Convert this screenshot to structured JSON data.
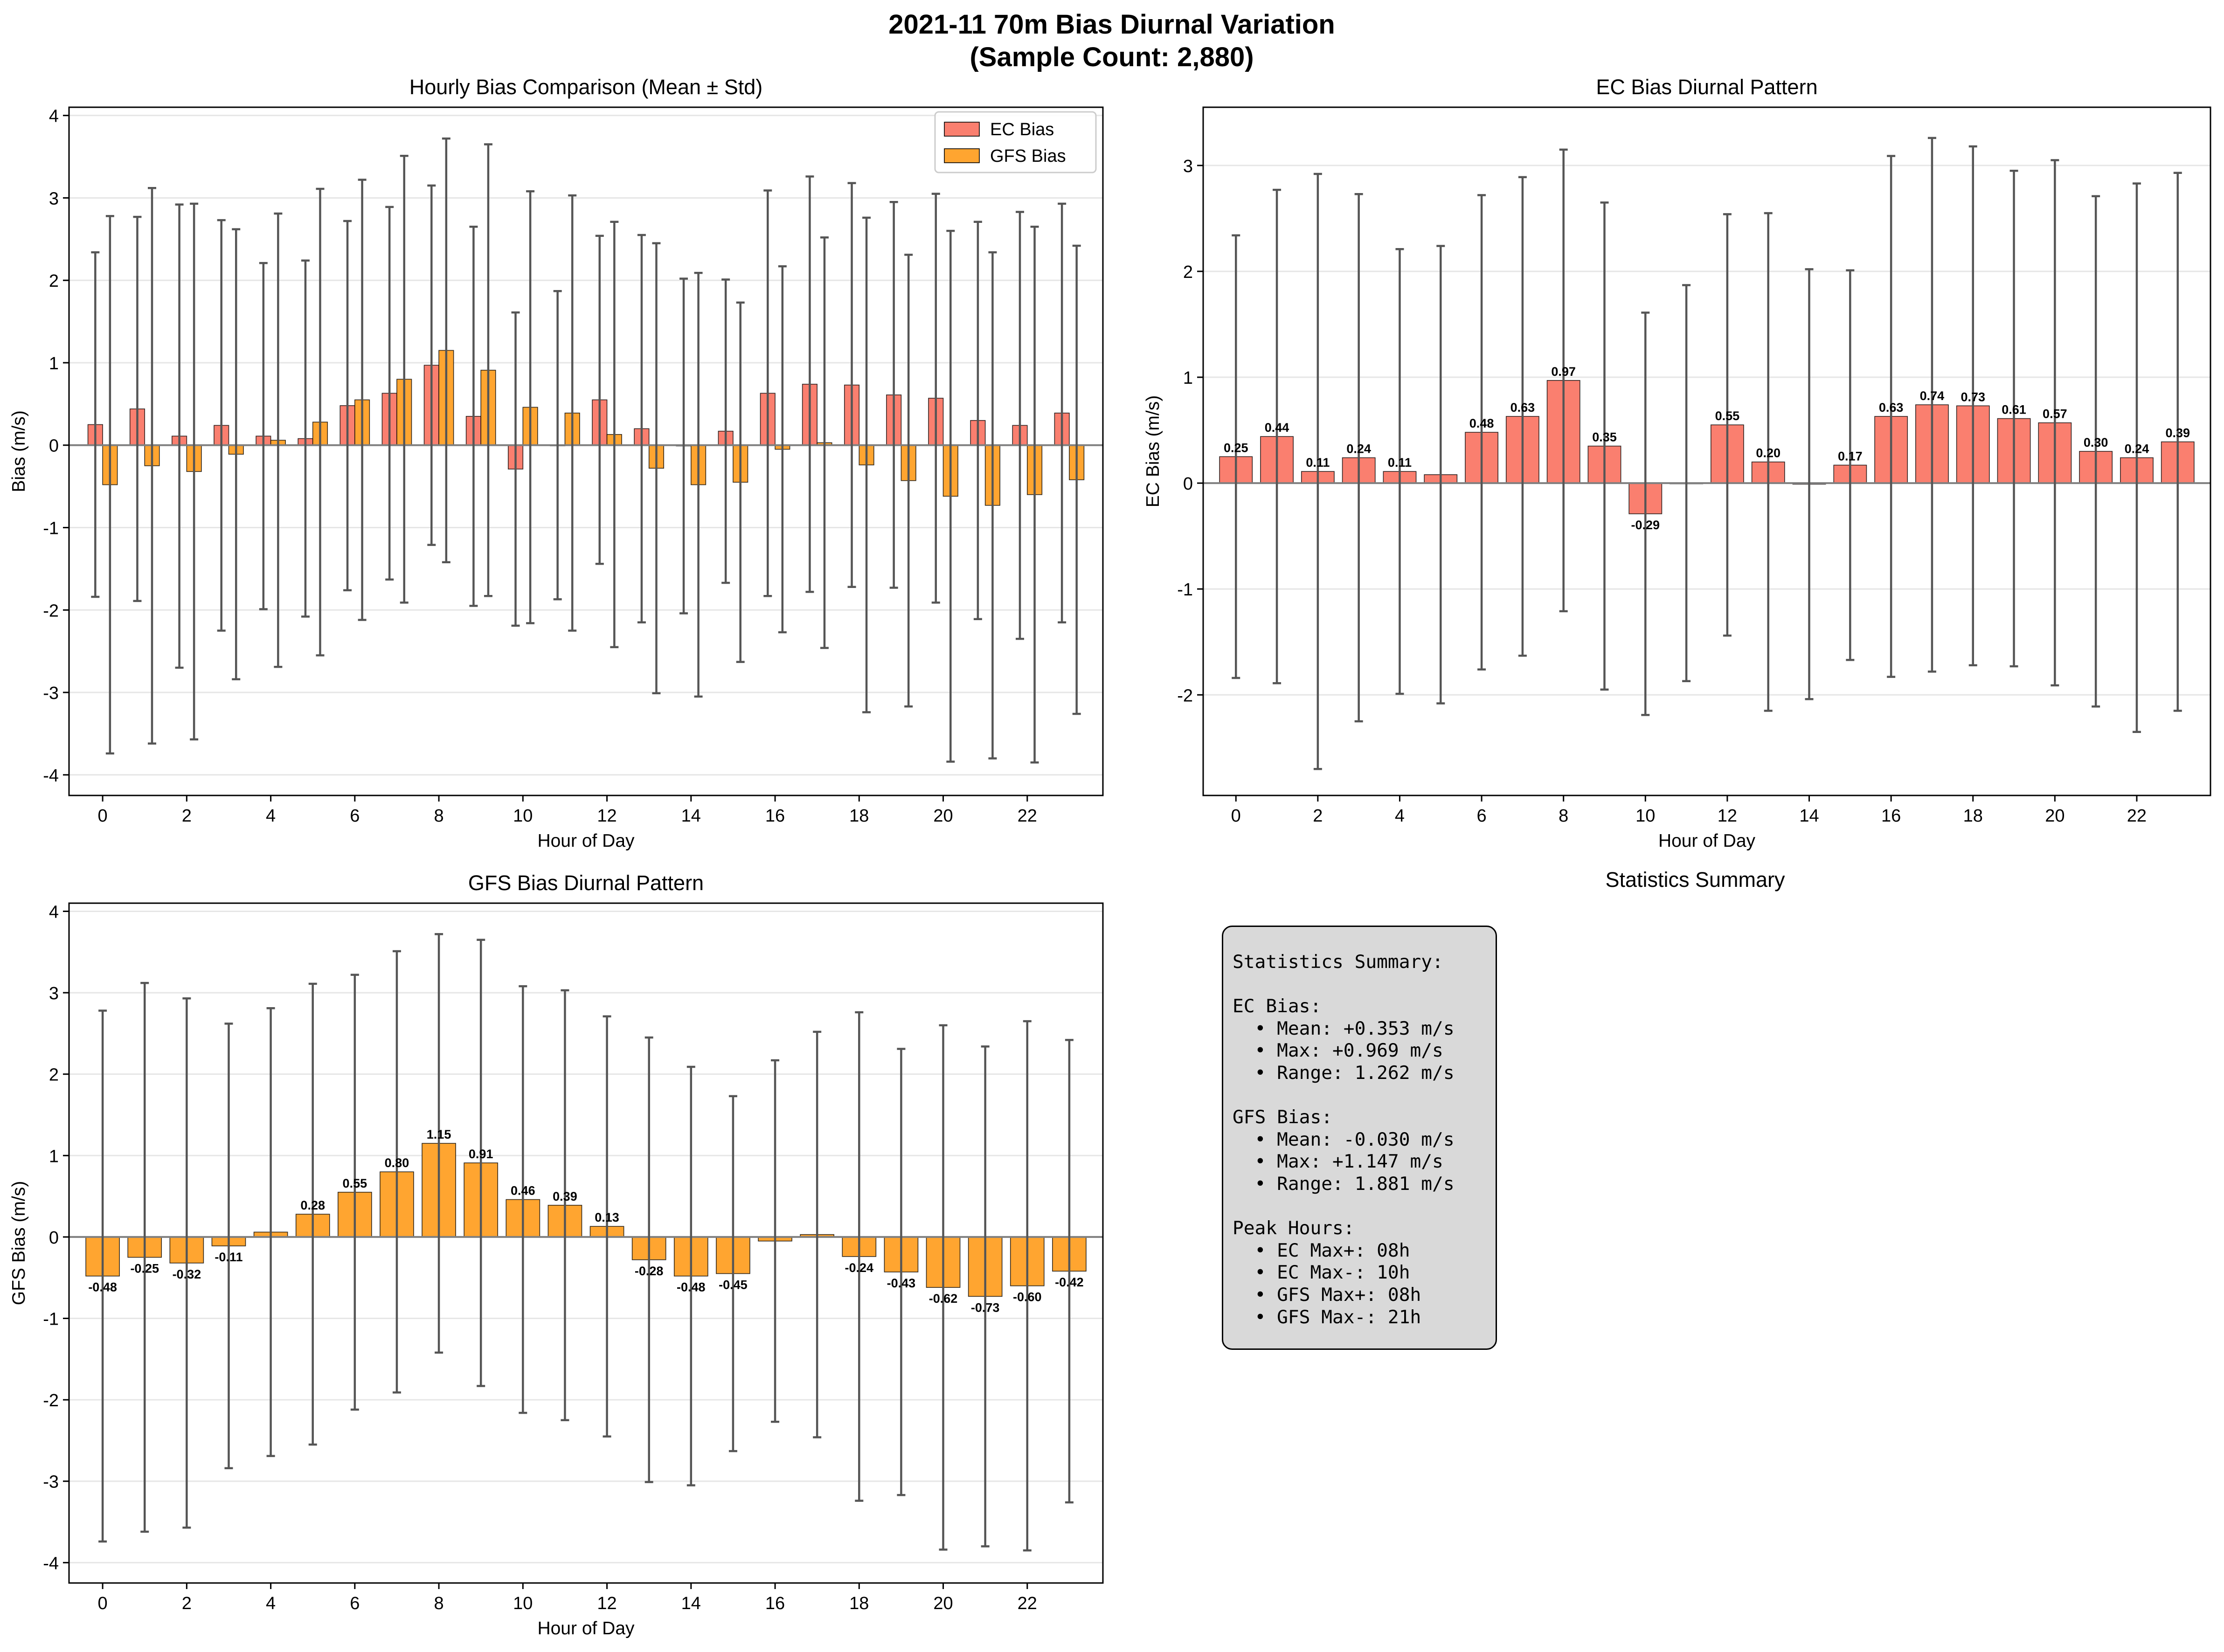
{
  "figure": {
    "title_line1": "2021-11 70m Bias Diurnal Variation",
    "title_line2": "(Sample Count: 2,880)"
  },
  "colors": {
    "ec": "#fa7f6f",
    "gfs": "#ffa530",
    "errorbar": "#555555",
    "zero_line": "#808080",
    "grid": "#e6e6e6"
  },
  "chart_data": [
    {
      "id": "comparison",
      "type": "bar",
      "title": "Hourly Bias Comparison (Mean ± Std)",
      "xlabel": "Hour of Day",
      "ylabel": "Bias (m/s)",
      "ylim": [
        -4.25,
        4.1
      ],
      "yticks": [
        -4,
        -3,
        -2,
        -1,
        0,
        1,
        2,
        3,
        4
      ],
      "xticks": [
        0,
        2,
        4,
        6,
        8,
        10,
        12,
        14,
        16,
        18,
        20,
        22
      ],
      "grid": "y",
      "legend": "top-right",
      "categories": [
        0,
        1,
        2,
        3,
        4,
        5,
        6,
        7,
        8,
        9,
        10,
        11,
        12,
        13,
        14,
        15,
        16,
        17,
        18,
        19,
        20,
        21,
        22,
        23
      ],
      "series": [
        {
          "name": "EC Bias",
          "color": "#fa7f6f",
          "values": [
            0.25,
            0.44,
            0.11,
            0.24,
            0.11,
            0.08,
            0.48,
            0.63,
            0.97,
            0.35,
            -0.29,
            0.0,
            0.55,
            0.2,
            -0.01,
            0.17,
            0.63,
            0.74,
            0.73,
            0.61,
            0.57,
            0.3,
            0.24,
            0.39
          ],
          "std": [
            2.09,
            2.33,
            2.81,
            2.49,
            2.1,
            2.16,
            2.24,
            2.26,
            2.18,
            2.3,
            1.9,
            1.87,
            1.99,
            2.35,
            2.03,
            1.84,
            2.46,
            2.52,
            2.45,
            2.34,
            2.48,
            2.41,
            2.59,
            2.54
          ]
        },
        {
          "name": "GFS Bias",
          "color": "#ffa530",
          "values": [
            -0.48,
            -0.25,
            -0.32,
            -0.11,
            0.06,
            0.28,
            0.55,
            0.8,
            1.15,
            0.91,
            0.46,
            0.39,
            0.13,
            -0.28,
            -0.48,
            -0.45,
            -0.05,
            0.03,
            -0.24,
            -0.43,
            -0.62,
            -0.73,
            -0.6,
            -0.42
          ],
          "std": [
            3.26,
            3.37,
            3.25,
            2.73,
            2.75,
            2.83,
            2.67,
            2.71,
            2.57,
            2.74,
            2.62,
            2.64,
            2.58,
            2.73,
            2.57,
            2.18,
            2.22,
            2.49,
            3.0,
            2.74,
            3.22,
            3.07,
            3.25,
            2.84
          ]
        }
      ]
    },
    {
      "id": "ec",
      "type": "bar",
      "title": "EC Bias Diurnal Pattern",
      "xlabel": "Hour of Day",
      "ylabel": "EC Bias (m/s)",
      "ylim": [
        -2.95,
        3.55
      ],
      "yticks": [
        -2,
        -1,
        0,
        1,
        2,
        3
      ],
      "xticks": [
        0,
        2,
        4,
        6,
        8,
        10,
        12,
        14,
        16,
        18,
        20,
        22
      ],
      "grid": "y",
      "categories": [
        0,
        1,
        2,
        3,
        4,
        5,
        6,
        7,
        8,
        9,
        10,
        11,
        12,
        13,
        14,
        15,
        16,
        17,
        18,
        19,
        20,
        21,
        22,
        23
      ],
      "series": [
        {
          "color": "#fa7f6f",
          "values": [
            0.25,
            0.44,
            0.11,
            0.24,
            0.11,
            0.08,
            0.48,
            0.63,
            0.97,
            0.35,
            -0.29,
            0.0,
            0.55,
            0.2,
            -0.01,
            0.17,
            0.63,
            0.74,
            0.73,
            0.61,
            0.57,
            0.3,
            0.24,
            0.39
          ],
          "std": [
            2.09,
            2.33,
            2.81,
            2.49,
            2.1,
            2.16,
            2.24,
            2.26,
            2.18,
            2.3,
            1.9,
            1.87,
            1.99,
            2.35,
            2.03,
            1.84,
            2.46,
            2.52,
            2.45,
            2.34,
            2.48,
            2.41,
            2.59,
            2.54
          ],
          "labels": [
            "0.25",
            "0.44",
            "0.11",
            "0.24",
            "0.11",
            "",
            "0.48",
            "0.63",
            "0.97",
            "0.35",
            "-0.29",
            "",
            "0.55",
            "0.20",
            "",
            "0.17",
            "0.63",
            "0.74",
            "0.73",
            "0.61",
            "0.57",
            "0.30",
            "0.24",
            "0.39"
          ]
        }
      ]
    },
    {
      "id": "gfs",
      "type": "bar",
      "title": "GFS Bias Diurnal Pattern",
      "xlabel": "Hour of Day",
      "ylabel": "GFS Bias (m/s)",
      "ylim": [
        -4.25,
        4.1
      ],
      "yticks": [
        -4,
        -3,
        -2,
        -1,
        0,
        1,
        2,
        3,
        4
      ],
      "xticks": [
        0,
        2,
        4,
        6,
        8,
        10,
        12,
        14,
        16,
        18,
        20,
        22
      ],
      "grid": "y",
      "categories": [
        0,
        1,
        2,
        3,
        4,
        5,
        6,
        7,
        8,
        9,
        10,
        11,
        12,
        13,
        14,
        15,
        16,
        17,
        18,
        19,
        20,
        21,
        22,
        23
      ],
      "series": [
        {
          "color": "#ffa530",
          "values": [
            -0.48,
            -0.25,
            -0.32,
            -0.11,
            0.06,
            0.28,
            0.55,
            0.8,
            1.15,
            0.91,
            0.46,
            0.39,
            0.13,
            -0.28,
            -0.48,
            -0.45,
            -0.05,
            0.03,
            -0.24,
            -0.43,
            -0.62,
            -0.73,
            -0.6,
            -0.42
          ],
          "std": [
            3.26,
            3.37,
            3.25,
            2.73,
            2.75,
            2.83,
            2.67,
            2.71,
            2.57,
            2.74,
            2.62,
            2.64,
            2.58,
            2.73,
            2.57,
            2.18,
            2.22,
            2.49,
            3.0,
            2.74,
            3.22,
            3.07,
            3.25,
            2.84
          ],
          "labels": [
            "-0.48",
            "-0.25",
            "-0.32",
            "-0.11",
            "",
            "0.28",
            "0.55",
            "0.80",
            "1.15",
            "0.91",
            "0.46",
            "0.39",
            "0.13",
            "-0.28",
            "-0.48",
            "-0.45",
            "",
            "",
            "-0.24",
            "-0.43",
            "-0.62",
            "-0.73",
            "-0.60",
            "-0.42"
          ]
        }
      ]
    }
  ],
  "stats_panel": {
    "title": "Statistics Summary",
    "text": "Statistics Summary:\n\nEC Bias:\n  • Mean: +0.353 m/s\n  • Max: +0.969 m/s\n  • Range: 1.262 m/s\n\nGFS Bias:\n  • Mean: -0.030 m/s\n  • Max: +1.147 m/s\n  • Range: 1.881 m/s\n\nPeak Hours:\n  • EC Max+: 08h\n  • EC Max-: 10h\n  • GFS Max+: 08h\n  • GFS Max-: 21h"
  }
}
